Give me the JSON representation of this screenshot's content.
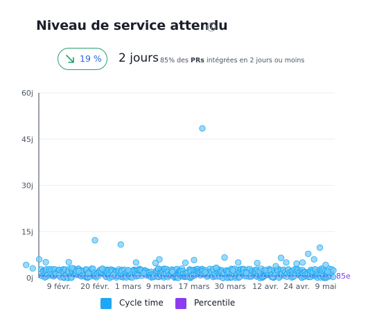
{
  "header": {
    "title": "Niveau de service attendu",
    "info_icon": "info-circle-icon"
  },
  "kpi": {
    "trend_icon": "arrow-down-right-icon",
    "change_pct": "19 %",
    "value": "2 jours",
    "description_prefix": "85% des ",
    "description_bold": "PRs",
    "description_suffix": " intégrées en 2 jours ou moins"
  },
  "colors": {
    "cycle_time": "#1ea7f2",
    "cycle_time_point": "#7cccf5",
    "percentile": "#8b3cf0",
    "trend_badge": "#22a06b",
    "trend_text": "#2563eb"
  },
  "chart_data": {
    "type": "scatter",
    "x_axis": {
      "type": "date",
      "tick_labels": [
        "9 févr.",
        "20 févr.",
        "1 mars",
        "9 mars",
        "17 mars",
        "30 mars",
        "12 avr.",
        "24 avr.",
        "9 mai"
      ],
      "tick_dates": [
        "02-09",
        "02-20",
        "03-01",
        "03-09",
        "03-17",
        "03-30",
        "04-12",
        "04-24",
        "05-09"
      ]
    },
    "y_axis": {
      "unit": "jours",
      "tick_labels": [
        "0j",
        "15j",
        "30j",
        "45j",
        "60j"
      ],
      "tick_values": [
        0,
        15,
        30,
        45,
        60
      ],
      "ylim": [
        0,
        60
      ]
    },
    "grid": true,
    "legend": {
      "position": "bottom",
      "entries": [
        {
          "name": "Cycle time"
        },
        {
          "name": "Percentile"
        }
      ]
    },
    "series": [
      {
        "name": "Cycle time",
        "points": [
          [
            "01-30",
            4.2
          ],
          [
            "02-01",
            3.1
          ],
          [
            "02-03",
            6.0
          ],
          [
            "02-05",
            5.1
          ],
          [
            "02-08",
            1.2
          ],
          [
            "02-09",
            0.8
          ],
          [
            "02-12",
            5.1
          ],
          [
            "02-13",
            3.2
          ],
          [
            "02-15",
            2.2
          ],
          [
            "02-18",
            1.4
          ],
          [
            "02-20",
            12.2
          ],
          [
            "02-22",
            2.9
          ],
          [
            "02-25",
            1.0
          ],
          [
            "02-27",
            10.8
          ],
          [
            "03-01",
            2.5
          ],
          [
            "03-03",
            5.0
          ],
          [
            "03-05",
            1.6
          ],
          [
            "03-08",
            4.8
          ],
          [
            "03-09",
            6.0
          ],
          [
            "03-12",
            2.0
          ],
          [
            "03-15",
            4.9
          ],
          [
            "03-17",
            5.8
          ],
          [
            "03-20",
            48.5
          ],
          [
            "03-21",
            1.8
          ],
          [
            "03-25",
            3.3
          ],
          [
            "03-28",
            6.6
          ],
          [
            "03-31",
            2.4
          ],
          [
            "04-02",
            5.0
          ],
          [
            "04-05",
            1.6
          ],
          [
            "04-09",
            4.8
          ],
          [
            "04-12",
            2.5
          ],
          [
            "04-16",
            3.8
          ],
          [
            "04-18",
            6.5
          ],
          [
            "04-20",
            5.0
          ],
          [
            "04-24",
            4.6
          ],
          [
            "04-27",
            5.0
          ],
          [
            "04-30",
            7.8
          ],
          [
            "05-03",
            6.0
          ],
          [
            "05-06",
            9.8
          ],
          [
            "05-09",
            4.2
          ],
          [
            "05-10",
            2.0
          ]
        ],
        "dense_near_zero": true,
        "dense_range_days": [
          0,
          3
        ]
      },
      {
        "name": "Percentile",
        "value": 2,
        "label": "85e"
      }
    ]
  }
}
